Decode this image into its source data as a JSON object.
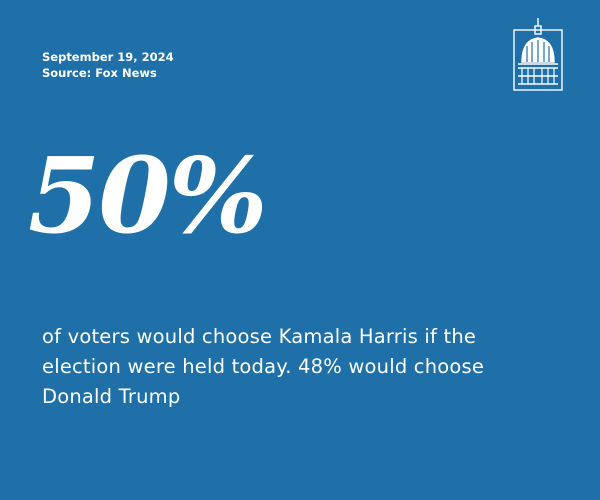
{
  "date": "September 19, 2024",
  "source": "Source: Fox News",
  "stat": "50%",
  "description": "of voters would choose Kamala Harris if the election were held today. 48% would choose Donald Trump"
}
